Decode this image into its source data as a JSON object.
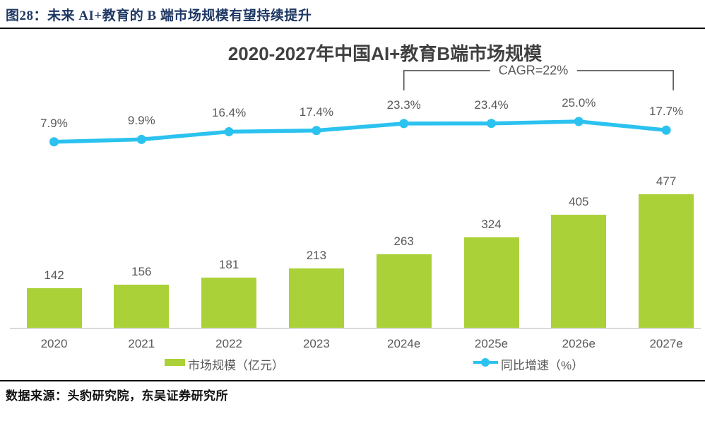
{
  "header": {
    "figure_title": "图28：未来 AI+教育的 B 端市场规模有望持续提升"
  },
  "chart": {
    "title": "2020-2027年中国AI+教育B端市场规模",
    "cagr_label": "CAGR=22%"
  },
  "chart_data": {
    "type": "bar",
    "title": "2020-2027年中国AI+教育B端市场规模",
    "categories": [
      "2020",
      "2021",
      "2022",
      "2023",
      "2024e",
      "2025e",
      "2026e",
      "2027e"
    ],
    "series": [
      {
        "name": "市场规模（亿元）",
        "type": "bar",
        "values": [
          142,
          156,
          181,
          213,
          263,
          324,
          405,
          477
        ]
      },
      {
        "name": "同比增速（%）",
        "type": "line",
        "values": [
          7.9,
          9.9,
          16.4,
          17.4,
          23.3,
          23.4,
          25.0,
          17.7
        ]
      }
    ],
    "annotation": {
      "text": "CAGR=22%",
      "span_categories": [
        "2024e",
        "2027e"
      ]
    },
    "xlabel": "",
    "ylabel": "",
    "y_axis_visible": false,
    "grid": false,
    "legend_position": "bottom",
    "data_labels": true
  },
  "legend": {
    "bar_label": "市场规模（亿元）",
    "line_label": "同比增速（%）"
  },
  "footer": {
    "source": "数据来源：头豹研究院，东吴证券研究所"
  },
  "colors": {
    "bar": "#ABD138",
    "line": "#2BC2EF",
    "value_label": "#595959",
    "chart_title": "#404040",
    "header_title": "#1F3864",
    "axis_line": "#D9D9D9",
    "bracket": "#595959"
  }
}
